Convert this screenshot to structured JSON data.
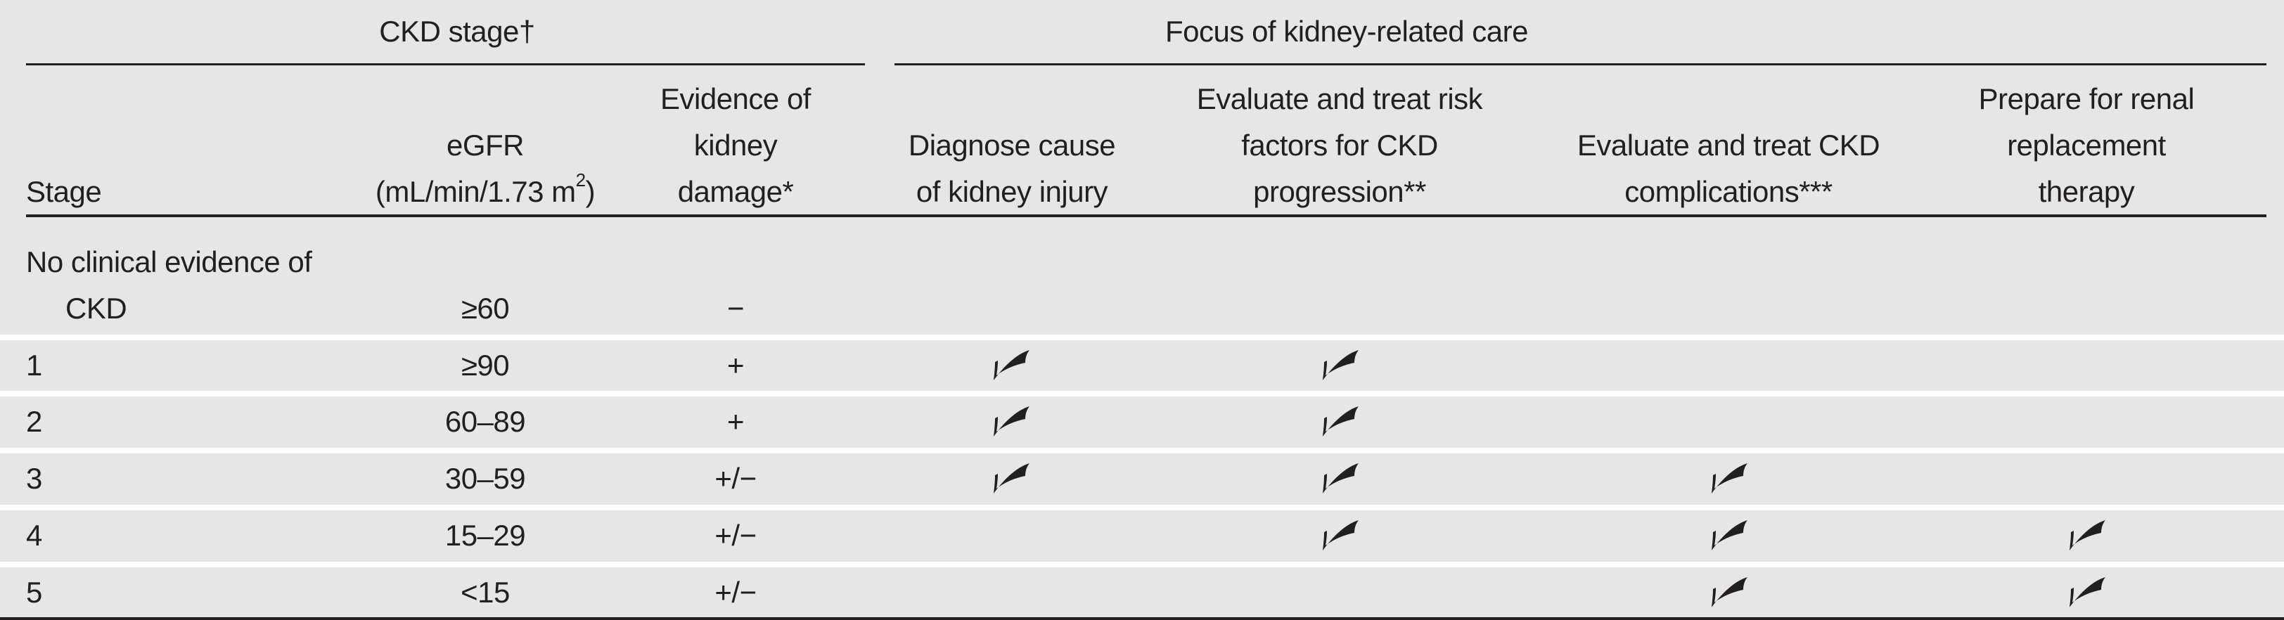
{
  "group_headers": {
    "ckd_stage": "CKD stage†",
    "focus": "Focus of kidney-related care"
  },
  "columns": {
    "stage": "Stage",
    "egfr_line1": "eGFR",
    "egfr_unit_main": "(mL/min/1.73 m",
    "egfr_unit_sup": "2",
    "egfr_unit_close": ")",
    "evidence_lines": [
      "Evidence of",
      "kidney",
      "damage*"
    ],
    "diagnose_lines": [
      "Diagnose cause",
      "of kidney injury"
    ],
    "risk_lines": [
      "Evaluate and treat risk",
      "factors for CKD",
      "progression**"
    ],
    "complications_lines": [
      "Evaluate and treat CKD",
      "complications***"
    ],
    "rrt_lines": [
      "Prepare for renal",
      "replacement",
      "therapy"
    ]
  },
  "rows": [
    {
      "stage": "No clinical evidence of CKD",
      "egfr": "≥60",
      "evidence": "−",
      "checks": [
        false,
        false,
        false,
        false
      ]
    },
    {
      "stage": "1",
      "egfr": "≥90",
      "evidence": "+",
      "checks": [
        true,
        true,
        false,
        false
      ]
    },
    {
      "stage": "2",
      "egfr": "60–89",
      "evidence": "+",
      "checks": [
        true,
        true,
        false,
        false
      ]
    },
    {
      "stage": "3",
      "egfr": "30–59",
      "evidence": "+/−",
      "checks": [
        true,
        true,
        true,
        false
      ]
    },
    {
      "stage": "4",
      "egfr": "15–29",
      "evidence": "+/−",
      "checks": [
        false,
        true,
        true,
        true
      ]
    },
    {
      "stage": "5",
      "egfr": "<15",
      "evidence": "+/−",
      "checks": [
        false,
        false,
        true,
        true
      ]
    }
  ],
  "icons": {
    "check": "checkmark-icon"
  },
  "colors": {
    "background": "#e6e6e6",
    "text": "#231f20",
    "separator": "#ffffff"
  }
}
